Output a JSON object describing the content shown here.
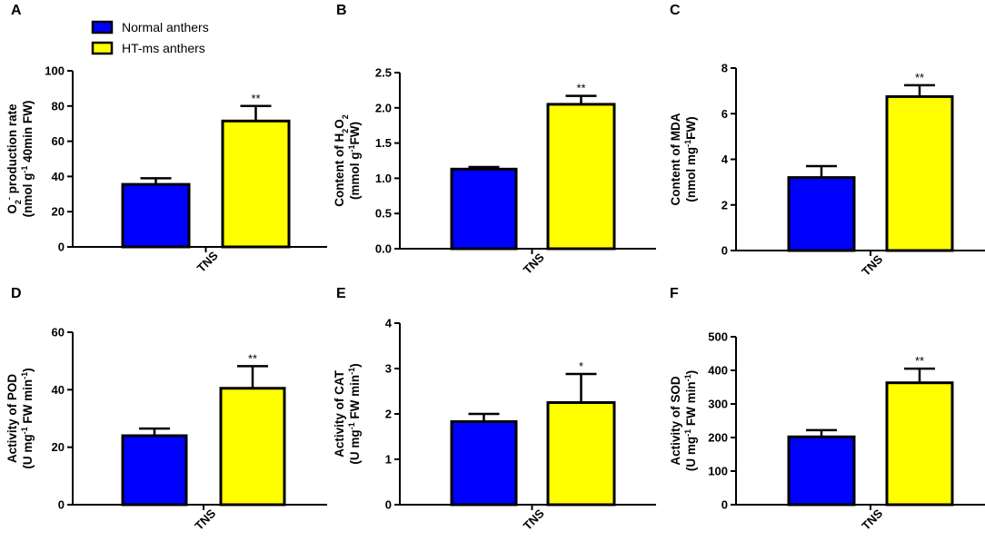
{
  "legend": [
    {
      "label": "Normal anthers",
      "color": "#0000ff"
    },
    {
      "label": "HT-ms anthers",
      "color": "#ffff00"
    }
  ],
  "chart_data": [
    {
      "panel": "A",
      "type": "bar",
      "categories": [
        "TNS"
      ],
      "ylim": [
        0,
        100
      ],
      "yticks": [
        0,
        20,
        40,
        60,
        80,
        100
      ],
      "ylabel": [
        [
          [
            "O",
            "n"
          ],
          [
            "2",
            "sub"
          ],
          [
            "-",
            "sup"
          ],
          [
            " production rate",
            "n"
          ]
        ],
        [
          [
            "(nmol g",
            "n"
          ],
          [
            "-1",
            "sup"
          ],
          [
            " 40min FW)",
            "n"
          ]
        ]
      ],
      "series": [
        {
          "name": "Normal anthers",
          "values": [
            35.5
          ],
          "error": [
            3.5
          ],
          "sig": ""
        },
        {
          "name": "HT-ms anthers",
          "values": [
            71.5
          ],
          "error": [
            8.5
          ],
          "sig": "**"
        }
      ]
    },
    {
      "panel": "B",
      "type": "bar",
      "categories": [
        "TNS"
      ],
      "ylim": [
        0,
        2.5
      ],
      "yticks": [
        "0.0",
        "0.5",
        "1.0",
        "1.5",
        "2.0",
        "2.5"
      ],
      "ylabel": [
        [
          [
            "Content of H",
            "n"
          ],
          [
            "2",
            "sub"
          ],
          [
            "O",
            "n"
          ],
          [
            "2",
            "sub"
          ]
        ],
        [
          [
            "(mmol g",
            "n"
          ],
          [
            "-1",
            "sup"
          ],
          [
            "FW)",
            "n"
          ]
        ]
      ],
      "series": [
        {
          "name": "Normal anthers",
          "values": [
            1.13
          ],
          "error": [
            0.03
          ],
          "sig": ""
        },
        {
          "name": "HT-ms anthers",
          "values": [
            2.05
          ],
          "error": [
            0.12
          ],
          "sig": "**"
        }
      ]
    },
    {
      "panel": "C",
      "type": "bar",
      "categories": [
        "TNS"
      ],
      "ylim": [
        0,
        8
      ],
      "yticks": [
        0,
        2,
        4,
        6,
        8
      ],
      "ylabel": [
        [
          [
            "Content of MDA",
            "n"
          ]
        ],
        [
          [
            "(nmol mg",
            "n"
          ],
          [
            "-1",
            "sup"
          ],
          [
            "FW)",
            "n"
          ]
        ]
      ],
      "series": [
        {
          "name": "Normal anthers",
          "values": [
            3.2
          ],
          "error": [
            0.5
          ],
          "sig": ""
        },
        {
          "name": "HT-ms anthers",
          "values": [
            6.75
          ],
          "error": [
            0.5
          ],
          "sig": "**"
        }
      ]
    },
    {
      "panel": "D",
      "type": "bar",
      "categories": [
        "TNS"
      ],
      "ylim": [
        0,
        60
      ],
      "yticks": [
        0,
        20,
        40,
        60
      ],
      "ylabel": [
        [
          [
            "Activity of POD",
            "n"
          ]
        ],
        [
          [
            "(U mg",
            "n"
          ],
          [
            "-1",
            "sup"
          ],
          [
            " FW min",
            "n"
          ],
          [
            "-1",
            "sup"
          ],
          [
            ")",
            "n"
          ]
        ]
      ],
      "series": [
        {
          "name": "Normal anthers",
          "values": [
            24
          ],
          "error": [
            2.5
          ],
          "sig": ""
        },
        {
          "name": "HT-ms anthers",
          "values": [
            40.5
          ],
          "error": [
            7.7
          ],
          "sig": "**"
        }
      ]
    },
    {
      "panel": "E",
      "type": "bar",
      "categories": [
        "TNS"
      ],
      "ylim": [
        0,
        4
      ],
      "yticks": [
        0,
        1,
        2,
        3,
        4
      ],
      "ylabel": [
        [
          [
            "Activity of CAT",
            "n"
          ]
        ],
        [
          [
            "(U mg",
            "n"
          ],
          [
            "-1",
            "sup"
          ],
          [
            " FW min",
            "n"
          ],
          [
            "-1",
            "sup"
          ],
          [
            ")",
            "n"
          ]
        ]
      ],
      "series": [
        {
          "name": "Normal anthers",
          "values": [
            1.83
          ],
          "error": [
            0.17
          ],
          "sig": ""
        },
        {
          "name": "HT-ms anthers",
          "values": [
            2.25
          ],
          "error": [
            0.63
          ],
          "sig": "*"
        }
      ]
    },
    {
      "panel": "F",
      "type": "bar",
      "categories": [
        "TNS"
      ],
      "ylim": [
        0,
        500
      ],
      "yticks": [
        0,
        100,
        200,
        300,
        400,
        500
      ],
      "ylabel": [
        [
          [
            "Activity of SOD",
            "n"
          ]
        ],
        [
          [
            "(U mg",
            "n"
          ],
          [
            "-1",
            "sup"
          ],
          [
            " FW min",
            "n"
          ],
          [
            "-1",
            "sup"
          ],
          [
            ")",
            "n"
          ]
        ]
      ],
      "series": [
        {
          "name": "Normal anthers",
          "values": [
            202
          ],
          "error": [
            20
          ],
          "sig": ""
        },
        {
          "name": "HT-ms anthers",
          "values": [
            363
          ],
          "error": [
            42
          ],
          "sig": "**"
        }
      ]
    }
  ]
}
